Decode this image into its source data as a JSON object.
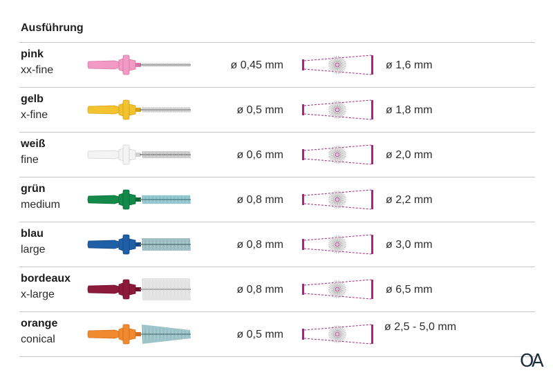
{
  "header": {
    "title": "Ausführung"
  },
  "rows": [
    {
      "name": "pink",
      "size": "xx-fine",
      "wire": "ø 0,45 mm",
      "diameter": "ø 1,6 mm",
      "color": "#f09ac4",
      "dark": "#d974a8",
      "bristle": "#b0b0b0",
      "bristle_len": 0.05
    },
    {
      "name": "gelb",
      "size": "x-fine",
      "wire": "ø 0,5 mm",
      "diameter": "ø 1,8 mm",
      "color": "#f2c230",
      "dark": "#d6a412",
      "bristle": "#a8a8a8",
      "bristle_len": 0.12
    },
    {
      "name": "weiß",
      "size": "fine",
      "wire": "ø 0,6 mm",
      "diameter": "ø 2,0 mm",
      "color": "#f4f4f4",
      "dark": "#d0d0d0",
      "bristle": "#9a9a9a",
      "bristle_len": 0.22
    },
    {
      "name": "grün",
      "size": "medium",
      "wire": "ø 0,8 mm",
      "diameter": "ø 2,2 mm",
      "color": "#138a4a",
      "dark": "#0b6b36",
      "bristle": "#2c8fa0",
      "bristle_len": 0.3
    },
    {
      "name": "blau",
      "size": "large",
      "wire": "ø 0,8 mm",
      "diameter": "ø 3,0 mm",
      "color": "#1f5fa6",
      "dark": "#164a86",
      "bristle": "#3f7f8a",
      "bristle_len": 0.5
    },
    {
      "name": "bordeaux",
      "size": "x-large",
      "wire": "ø 0,8 mm",
      "diameter": "ø 6,5 mm",
      "color": "#8c1a3a",
      "dark": "#6d1229",
      "bristle": "#c8c8c8",
      "bristle_len": 1.0
    },
    {
      "name": "orange",
      "size": "conical",
      "wire": "ø 0,5 mm",
      "diameter": "ø 2,5 - 5,0 mm",
      "color": "#f08a30",
      "dark": "#d46e18",
      "bristle": "#3c8a94",
      "bristle_len": 0.85
    }
  ],
  "accent": "#a3287a",
  "logo": {
    "text": "OA"
  }
}
